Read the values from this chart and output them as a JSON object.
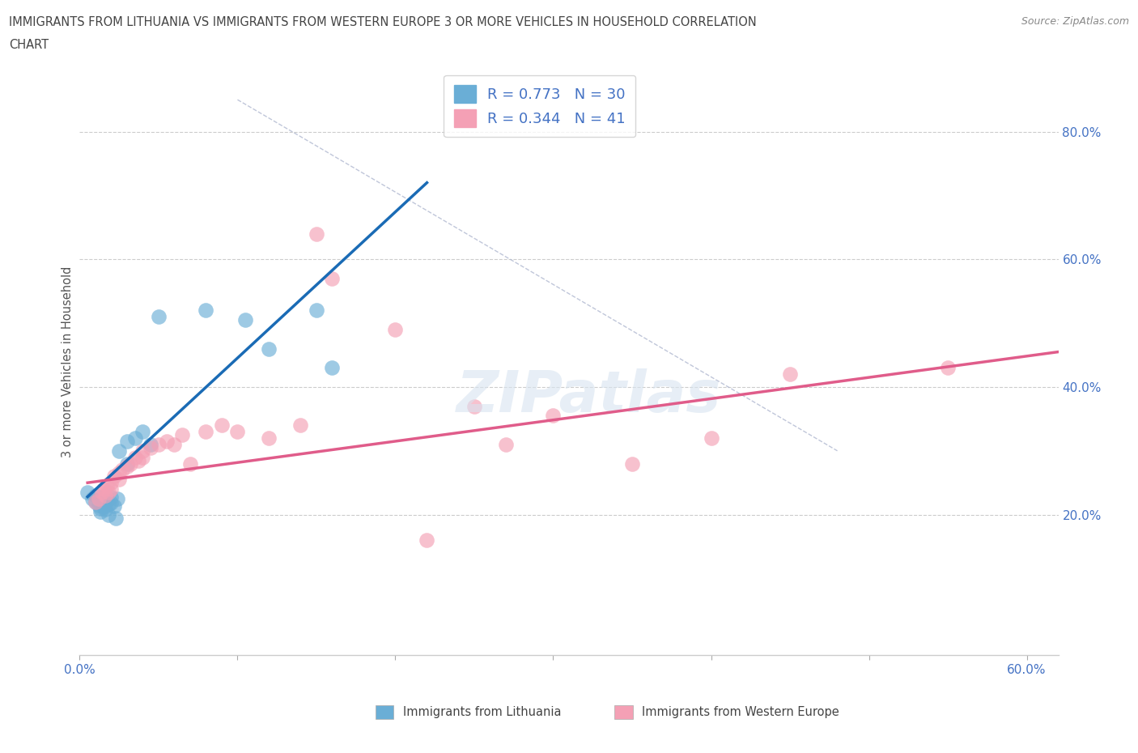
{
  "title_line1": "IMMIGRANTS FROM LITHUANIA VS IMMIGRANTS FROM WESTERN EUROPE 3 OR MORE VEHICLES IN HOUSEHOLD CORRELATION",
  "title_line2": "CHART",
  "source": "Source: ZipAtlas.com",
  "ylabel": "3 or more Vehicles in Household",
  "xlabel_blue": "Immigrants from Lithuania",
  "xlabel_pink": "Immigrants from Western Europe",
  "xlim": [
    0.0,
    0.62
  ],
  "ylim": [
    -0.02,
    0.9
  ],
  "xticks": [
    0.0,
    0.1,
    0.2,
    0.3,
    0.4,
    0.5,
    0.6
  ],
  "xtick_labels": [
    "0.0%",
    "",
    "",
    "",
    "",
    "",
    "60.0%"
  ],
  "ytick_labels_right": [
    "20.0%",
    "40.0%",
    "60.0%",
    "80.0%"
  ],
  "ytick_positions_right": [
    0.2,
    0.4,
    0.6,
    0.8
  ],
  "blue_R": 0.773,
  "blue_N": 30,
  "pink_R": 0.344,
  "pink_N": 41,
  "blue_color": "#6aaed6",
  "pink_color": "#f4a0b5",
  "blue_line_color": "#1a6bb5",
  "pink_line_color": "#e05c8a",
  "blue_scatter": [
    [
      0.005,
      0.235
    ],
    [
      0.008,
      0.225
    ],
    [
      0.01,
      0.23
    ],
    [
      0.01,
      0.22
    ],
    [
      0.012,
      0.215
    ],
    [
      0.013,
      0.21
    ],
    [
      0.013,
      0.205
    ],
    [
      0.015,
      0.218
    ],
    [
      0.015,
      0.212
    ],
    [
      0.016,
      0.208
    ],
    [
      0.017,
      0.222
    ],
    [
      0.018,
      0.216
    ],
    [
      0.018,
      0.2
    ],
    [
      0.02,
      0.228
    ],
    [
      0.02,
      0.218
    ],
    [
      0.022,
      0.213
    ],
    [
      0.023,
      0.195
    ],
    [
      0.024,
      0.225
    ],
    [
      0.025,
      0.3
    ],
    [
      0.03,
      0.315
    ],
    [
      0.035,
      0.32
    ],
    [
      0.04,
      0.33
    ],
    [
      0.05,
      0.51
    ],
    [
      0.08,
      0.52
    ],
    [
      0.105,
      0.505
    ],
    [
      0.12,
      0.46
    ],
    [
      0.15,
      0.52
    ],
    [
      0.16,
      0.43
    ],
    [
      0.03,
      0.28
    ],
    [
      0.045,
      0.31
    ]
  ],
  "pink_scatter": [
    [
      0.01,
      0.22
    ],
    [
      0.012,
      0.225
    ],
    [
      0.014,
      0.235
    ],
    [
      0.015,
      0.24
    ],
    [
      0.016,
      0.23
    ],
    [
      0.017,
      0.245
    ],
    [
      0.018,
      0.235
    ],
    [
      0.02,
      0.25
    ],
    [
      0.02,
      0.24
    ],
    [
      0.022,
      0.26
    ],
    [
      0.025,
      0.265
    ],
    [
      0.025,
      0.255
    ],
    [
      0.027,
      0.27
    ],
    [
      0.03,
      0.275
    ],
    [
      0.032,
      0.28
    ],
    [
      0.035,
      0.29
    ],
    [
      0.037,
      0.285
    ],
    [
      0.04,
      0.3
    ],
    [
      0.04,
      0.29
    ],
    [
      0.045,
      0.305
    ],
    [
      0.05,
      0.31
    ],
    [
      0.055,
      0.315
    ],
    [
      0.06,
      0.31
    ],
    [
      0.065,
      0.325
    ],
    [
      0.07,
      0.28
    ],
    [
      0.08,
      0.33
    ],
    [
      0.09,
      0.34
    ],
    [
      0.1,
      0.33
    ],
    [
      0.12,
      0.32
    ],
    [
      0.14,
      0.34
    ],
    [
      0.15,
      0.64
    ],
    [
      0.16,
      0.57
    ],
    [
      0.2,
      0.49
    ],
    [
      0.22,
      0.16
    ],
    [
      0.25,
      0.37
    ],
    [
      0.27,
      0.31
    ],
    [
      0.3,
      0.355
    ],
    [
      0.35,
      0.28
    ],
    [
      0.4,
      0.32
    ],
    [
      0.45,
      0.42
    ],
    [
      0.55,
      0.43
    ]
  ],
  "blue_line_x": [
    0.005,
    0.22
  ],
  "blue_line_y": [
    0.228,
    0.72
  ],
  "pink_line_x": [
    0.005,
    0.62
  ],
  "pink_line_y": [
    0.25,
    0.455
  ],
  "diag_line_x": [
    0.1,
    0.48
  ],
  "diag_line_y": [
    0.85,
    0.3
  ],
  "watermark_text": "ZIPatlas",
  "background_color": "#ffffff",
  "grid_color": "#cccccc",
  "title_color": "#444444"
}
